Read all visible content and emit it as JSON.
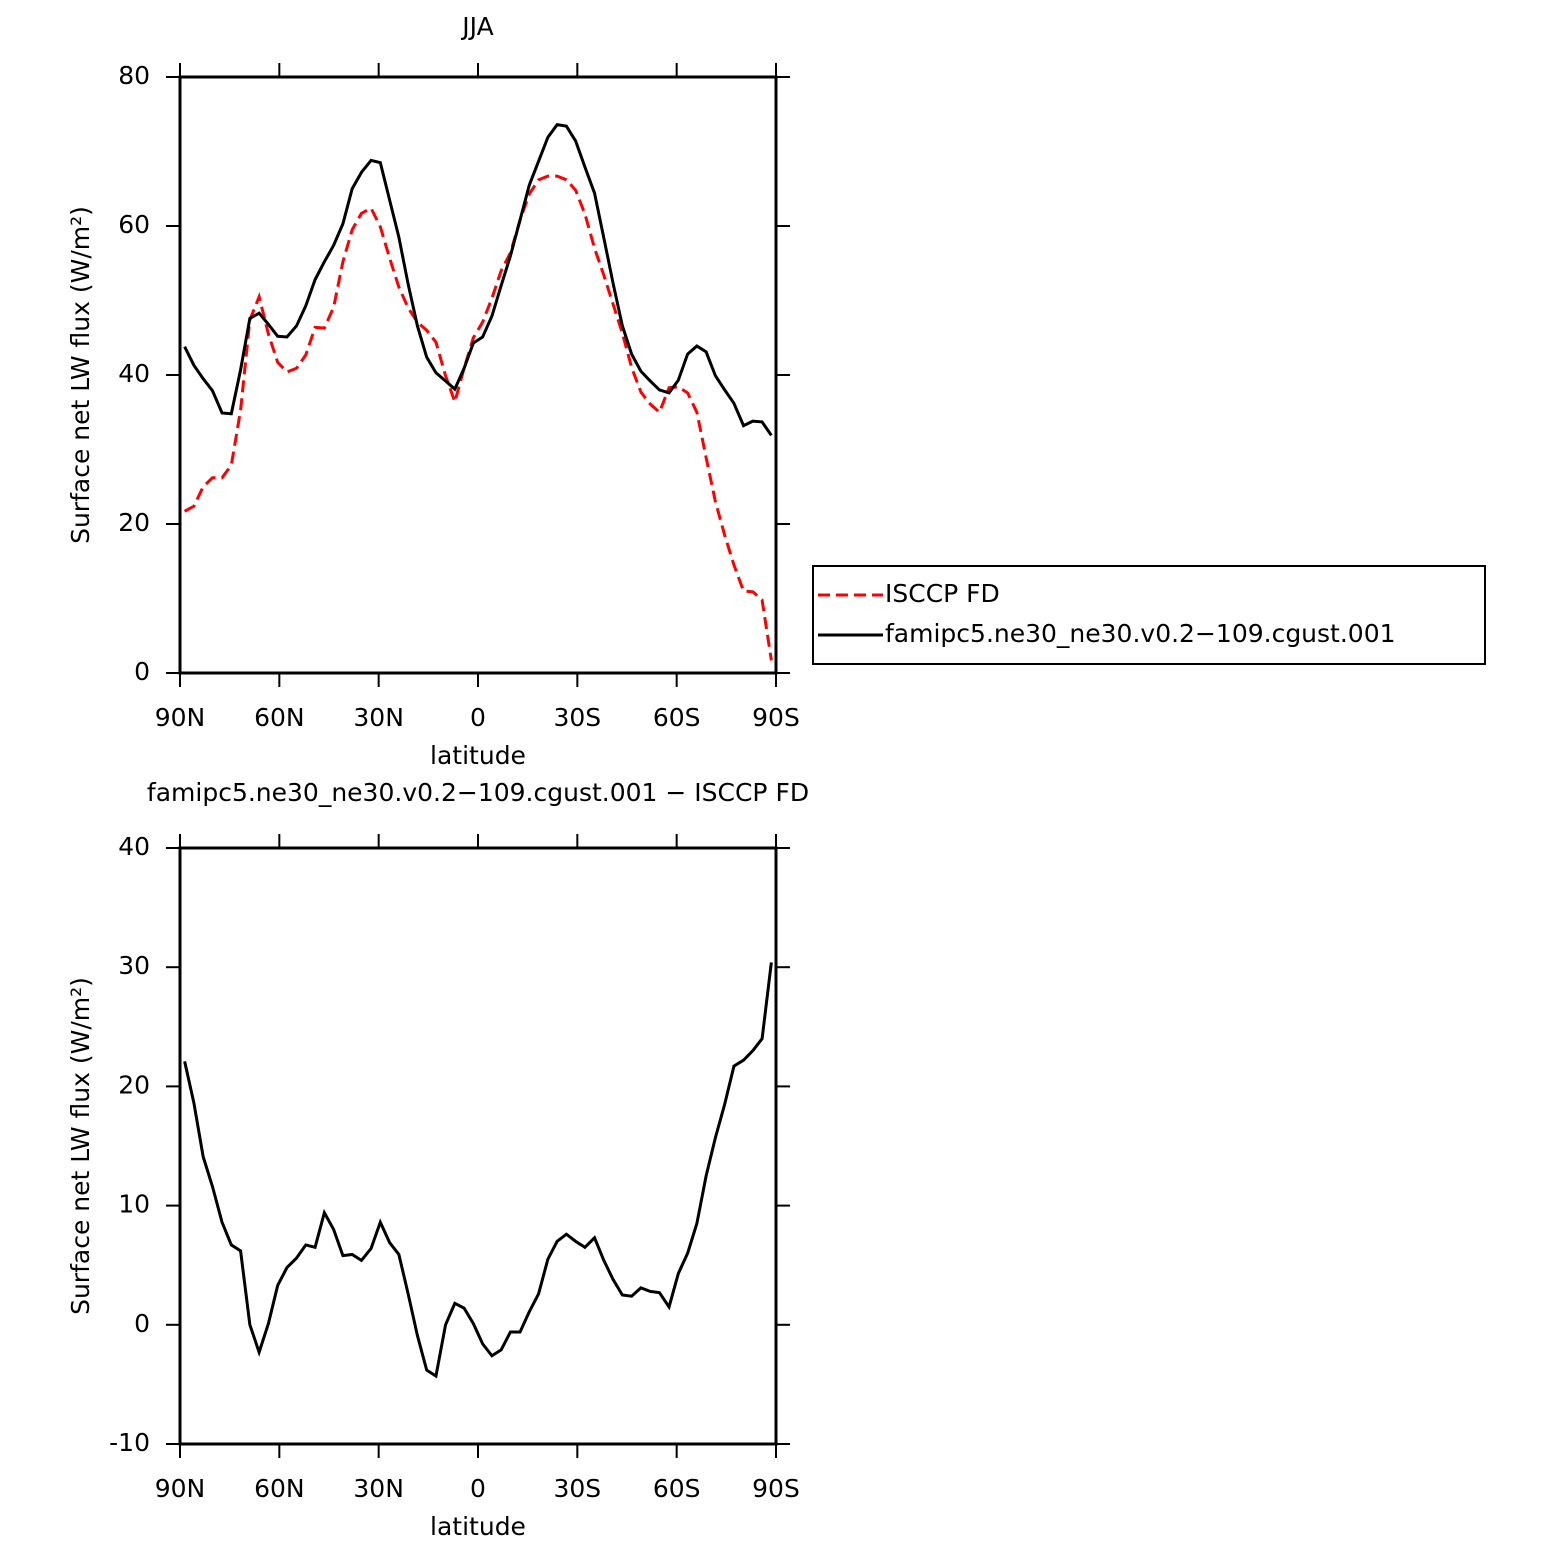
{
  "chart_data": [
    {
      "type": "line",
      "title": "JJA",
      "x_label": "latitude",
      "y_label": "Surface net LW flux (W/m²)",
      "x": [
        88.6,
        85.8,
        83.0,
        80.2,
        77.3,
        74.5,
        71.7,
        68.9,
        66.1,
        63.3,
        60.5,
        57.7,
        54.8,
        52.0,
        49.2,
        46.4,
        43.6,
        40.8,
        38.0,
        35.2,
        32.3,
        29.5,
        26.7,
        23.9,
        21.1,
        18.3,
        15.5,
        12.7,
        9.8,
        7.0,
        4.2,
        1.4,
        -1.4,
        -4.2,
        -7.0,
        -9.8,
        -12.7,
        -15.5,
        -18.3,
        -21.1,
        -23.9,
        -26.7,
        -29.5,
        -32.3,
        -35.2,
        -38.0,
        -40.8,
        -43.6,
        -46.4,
        -49.2,
        -52.0,
        -54.8,
        -57.7,
        -60.5,
        -63.3,
        -66.1,
        -68.9,
        -71.7,
        -74.5,
        -77.3,
        -80.2,
        -83.0,
        -85.8,
        -88.6
      ],
      "series": [
        {
          "name": "ISCCP FD",
          "color": "#ff0000",
          "dashed": true,
          "values": [
            21.7,
            22.4,
            25,
            26.2,
            26.2,
            27.9,
            35.3,
            47.4,
            50.5,
            45.5,
            41.7,
            40.4,
            40.9,
            42.7,
            46.4,
            46.3,
            49.1,
            55.2,
            59.5,
            61.7,
            62.4,
            59.9,
            55.7,
            51.8,
            49,
            47.1,
            46,
            44.4,
            39.9,
            36.4,
            40.9,
            45,
            47.1,
            50.3,
            54,
            56.4,
            60.8,
            64.3,
            66.2,
            66.7,
            66.7,
            66.2,
            64.8,
            61.6,
            57,
            53.4,
            49.5,
            45.6,
            41,
            37.7,
            36.1,
            35,
            38.3,
            38.4,
            37.6,
            35,
            28.9,
            23,
            18.5,
            14.5,
            11,
            10.9,
            9.8,
            1.7
          ]
        },
        {
          "name": "famipc5.ne30_ne30.v0.2−109.cgust.001",
          "color": "#000000",
          "dashed": false,
          "values": [
            43.8,
            41.3,
            39.5,
            37.9,
            34.9,
            34.8,
            40.7,
            47.6,
            48.3,
            46.8,
            45.2,
            45.1,
            46.6,
            49.3,
            52.8,
            55.2,
            57.4,
            60.3,
            65,
            67.2,
            68.8,
            68.5,
            63.5,
            58.5,
            52.2,
            46.6,
            42.4,
            40.3,
            39.2,
            38.1,
            40.9,
            44.3,
            45.1,
            47.9,
            52,
            56,
            60.8,
            65.5,
            68.7,
            71.9,
            73.6,
            73.4,
            71.4,
            67.9,
            64.4,
            58.4,
            52.3,
            46.6,
            42.8,
            40.5,
            39.2,
            38,
            37.6,
            39.3,
            42.8,
            43.9,
            43.1,
            39.9,
            38,
            36.2,
            33.2,
            33.8,
            33.7,
            31.9
          ]
        }
      ],
      "xlim": [
        90,
        -90
      ],
      "xticks": [
        {
          "value": 90,
          "label": "90N"
        },
        {
          "value": 60,
          "label": "60N"
        },
        {
          "value": 30,
          "label": "30N"
        },
        0,
        {
          "value": -30,
          "label": "30S"
        },
        {
          "value": -60,
          "label": "60S"
        },
        {
          "value": -90,
          "label": "90S"
        }
      ],
      "ylim": [
        0,
        80
      ],
      "yticks": [
        0,
        20,
        40,
        60,
        80
      ],
      "legend": "right"
    },
    {
      "type": "line",
      "title": "famipc5.ne30_ne30.v0.2−109.cgust.001 − ISCCP FD",
      "x_label": "latitude",
      "y_label": "Surface net LW flux (W/m²)",
      "x": [
        88.6,
        85.8,
        83.0,
        80.2,
        77.3,
        74.5,
        71.7,
        68.9,
        66.1,
        63.3,
        60.5,
        57.7,
        54.8,
        52.0,
        49.2,
        46.4,
        43.6,
        40.8,
        38.0,
        35.2,
        32.3,
        29.5,
        26.7,
        23.9,
        21.1,
        18.3,
        15.5,
        12.7,
        9.8,
        7.0,
        4.2,
        1.4,
        -1.4,
        -4.2,
        -7.0,
        -9.8,
        -12.7,
        -15.5,
        -18.3,
        -21.1,
        -23.9,
        -26.7,
        -29.5,
        -32.3,
        -35.2,
        -38.0,
        -40.8,
        -43.6,
        -46.4,
        -49.2,
        -52.0,
        -54.8,
        -57.7,
        -60.5,
        -63.3,
        -66.1,
        -68.9,
        -71.7,
        -74.5,
        -77.3,
        -80.2,
        -83.0,
        -85.8,
        -88.6
      ],
      "color": "#000000",
      "values": [
        22.1,
        18.6,
        14.1,
        11.6,
        8.6,
        6.7,
        6.2,
        0,
        -2.3,
        0.1,
        3.3,
        4.8,
        5.6,
        6.7,
        6.5,
        9.4,
        8,
        5.8,
        5.9,
        5.4,
        6.4,
        8.6,
        6.9,
        5.9,
        2.6,
        -0.9,
        -3.8,
        -4.3,
        0,
        1.8,
        1.4,
        0.1,
        -1.6,
        -2.6,
        -2.1,
        -0.6,
        -0.6,
        1.1,
        2.6,
        5.5,
        7,
        7.6,
        7,
        6.5,
        7.3,
        5.4,
        3.8,
        2.5,
        2.4,
        3.1,
        2.8,
        2.7,
        1.5,
        4.3,
        6,
        8.5,
        12.5,
        15.7,
        18.5,
        21.7,
        22.2,
        23,
        24,
        30.4
      ],
      "xlim": [
        90,
        -90
      ],
      "xticks": [
        {
          "value": 90,
          "label": "90N"
        },
        {
          "value": 60,
          "label": "60N"
        },
        {
          "value": 30,
          "label": "30N"
        },
        0,
        {
          "value": -30,
          "label": "30S"
        },
        {
          "value": -60,
          "label": "60S"
        },
        {
          "value": -90,
          "label": "90S"
        }
      ],
      "ylim": [
        -10,
        40
      ],
      "yticks": [
        -10,
        0,
        10,
        20,
        30,
        40
      ]
    }
  ]
}
